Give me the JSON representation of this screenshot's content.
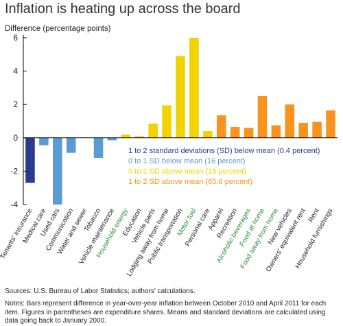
{
  "colors": {
    "below_2sd": "#2b3990",
    "below_1sd": "#5b9bd5",
    "above_1sd": "#f2d300",
    "above_2sd": "#f7941d",
    "energy_label": "#2e8b3a",
    "axis": "#000000",
    "tick_text": "#222222"
  },
  "chart_data": {
    "type": "bar",
    "title": "Inflation is heating up across the board",
    "ylabel": "Difference (percentage points)",
    "xlabel": "",
    "ylim": [
      -4,
      6
    ],
    "yticks": [
      -4,
      -2,
      0,
      2,
      4,
      6
    ],
    "grid": false,
    "legend_position": "center",
    "legend": [
      {
        "label": "1 to 2 standard deviations (SD) below mean (0.4 percent)",
        "group": "below_2sd"
      },
      {
        "label": "0 to 1 SD below mean (16 percent)",
        "group": "below_1sd"
      },
      {
        "label": "0 to 1 SD above mean (18 percent)",
        "group": "above_1sd"
      },
      {
        "label": "1 to 2 SD above mean (65.6 percent)",
        "group": "above_2sd"
      }
    ],
    "categories": [
      "Tenants' insurance",
      "Medical care",
      "Used cars",
      "Communication",
      "Water and sewer",
      "Tobacco",
      "Vehicle maintenance",
      "Household energy",
      "Education",
      "Vehicle parts",
      "Lodging away from home",
      "Public transportation",
      "Motor fuel",
      "Personal care",
      "Apparel",
      "Recreation",
      "Alcoholic beverages",
      "Food at home",
      "Food away from home",
      "New vehicles",
      "Owners' equivalent rent",
      "Rent",
      "Household furnishings"
    ],
    "values": [
      -2.7,
      -0.45,
      -4.0,
      -0.9,
      0.0,
      -1.2,
      -0.15,
      0.2,
      0.1,
      0.85,
      1.95,
      4.9,
      6.0,
      0.4,
      1.35,
      0.65,
      0.6,
      2.5,
      0.75,
      2.0,
      0.9,
      0.95,
      1.65
    ],
    "groups": [
      "below_2sd",
      "below_1sd",
      "below_1sd",
      "below_1sd",
      "below_1sd",
      "below_1sd",
      "below_1sd",
      "above_1sd",
      "above_1sd",
      "above_1sd",
      "above_1sd",
      "above_1sd",
      "above_1sd",
      "above_1sd",
      "above_2sd",
      "above_2sd",
      "above_2sd",
      "above_2sd",
      "above_2sd",
      "above_2sd",
      "above_2sd",
      "above_2sd",
      "above_2sd"
    ],
    "green_labels": [
      "Household energy",
      "Motor fuel",
      "Alcoholic beverages",
      "Food at home",
      "Food away from home"
    ]
  },
  "footer": {
    "source": "Sources: U.S. Bureau of Labor Statistics; authors' calculations.",
    "notes": "Notes: Bars represent difference in year-over-year inflation between October 2010 and April 2011 for each item. Figures in parentheses are expenditure shares. Means and standard deviations are calculated using data going back to January 2000."
  }
}
